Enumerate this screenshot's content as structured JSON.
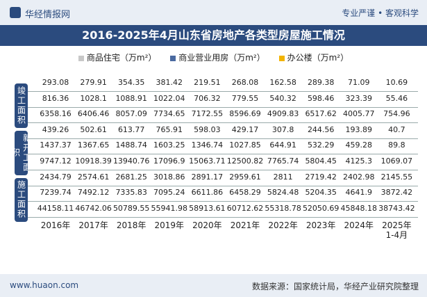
{
  "header": {
    "brand": "华经情报网",
    "tagline": "专业严谨 • 客观科学"
  },
  "footer": {
    "site": "www.huaon.com",
    "source": "数据来源：国家统计局，华经产业研究院整理"
  },
  "chart_data": {
    "type": "table",
    "title": "2016-2025年4月山东省房地产各类型房屋施工情况",
    "legend": [
      {
        "name": "商品住宅（万m²）",
        "color": "#c8c8c8"
      },
      {
        "name": "商业营业用房（万m²）",
        "color": "#4a6aa0"
      },
      {
        "name": "办公楼（万m²）",
        "color": "#f2b400"
      }
    ],
    "categories": [
      "2016年",
      "2017年",
      "2018年",
      "2019年",
      "2020年",
      "2021年",
      "2022年",
      "2023年",
      "2024年",
      "2025年\n1-4月"
    ],
    "groups": [
      {
        "label": "竣工面积",
        "rows": [
          {
            "series": "办公楼",
            "values": [
              293.08,
              279.91,
              354.35,
              381.42,
              219.51,
              268.08,
              162.58,
              289.38,
              71.09,
              10.69
            ]
          },
          {
            "series": "商业营业用房",
            "values": [
              816.36,
              1028.1,
              1088.91,
              1022.04,
              706.32,
              779.55,
              540.32,
              598.46,
              323.39,
              55.46
            ]
          },
          {
            "series": "商品住宅",
            "values": [
              6358.16,
              6406.46,
              8057.09,
              7734.65,
              7172.55,
              8596.69,
              4909.83,
              6517.62,
              4005.77,
              754.96
            ]
          }
        ]
      },
      {
        "label": "新开工面积",
        "rows": [
          {
            "series": "办公楼",
            "values": [
              439.26,
              502.61,
              613.77,
              765.91,
              598.03,
              429.17,
              307.8,
              244.56,
              193.89,
              40.7
            ]
          },
          {
            "series": "商业营业用房",
            "values": [
              1437.37,
              1367.65,
              1488.74,
              1603.25,
              1346.74,
              1027.85,
              644.91,
              532.29,
              459.28,
              89.8
            ]
          },
          {
            "series": "商品住宅",
            "values": [
              9747.12,
              10918.39,
              13940.76,
              17096.9,
              15063.71,
              12500.82,
              7765.74,
              5804.45,
              4125.3,
              1069.07
            ]
          }
        ]
      },
      {
        "label": "施工面积",
        "rows": [
          {
            "series": "办公楼",
            "values": [
              2434.79,
              2574.61,
              2681.25,
              3018.86,
              2891.17,
              2959.61,
              2811,
              2719.42,
              2402.98,
              2145.55
            ]
          },
          {
            "series": "商业营业用房",
            "values": [
              7239.74,
              7492.12,
              7335.83,
              7095.24,
              6611.86,
              6458.29,
              5824.48,
              5204.35,
              4641.9,
              3872.42
            ]
          },
          {
            "series": "商品住宅",
            "values": [
              44158.11,
              46742.06,
              50789.55,
              55941.98,
              58913.61,
              60712.62,
              55318.78,
              52050.69,
              45848.18,
              38743.42
            ]
          }
        ]
      }
    ]
  }
}
